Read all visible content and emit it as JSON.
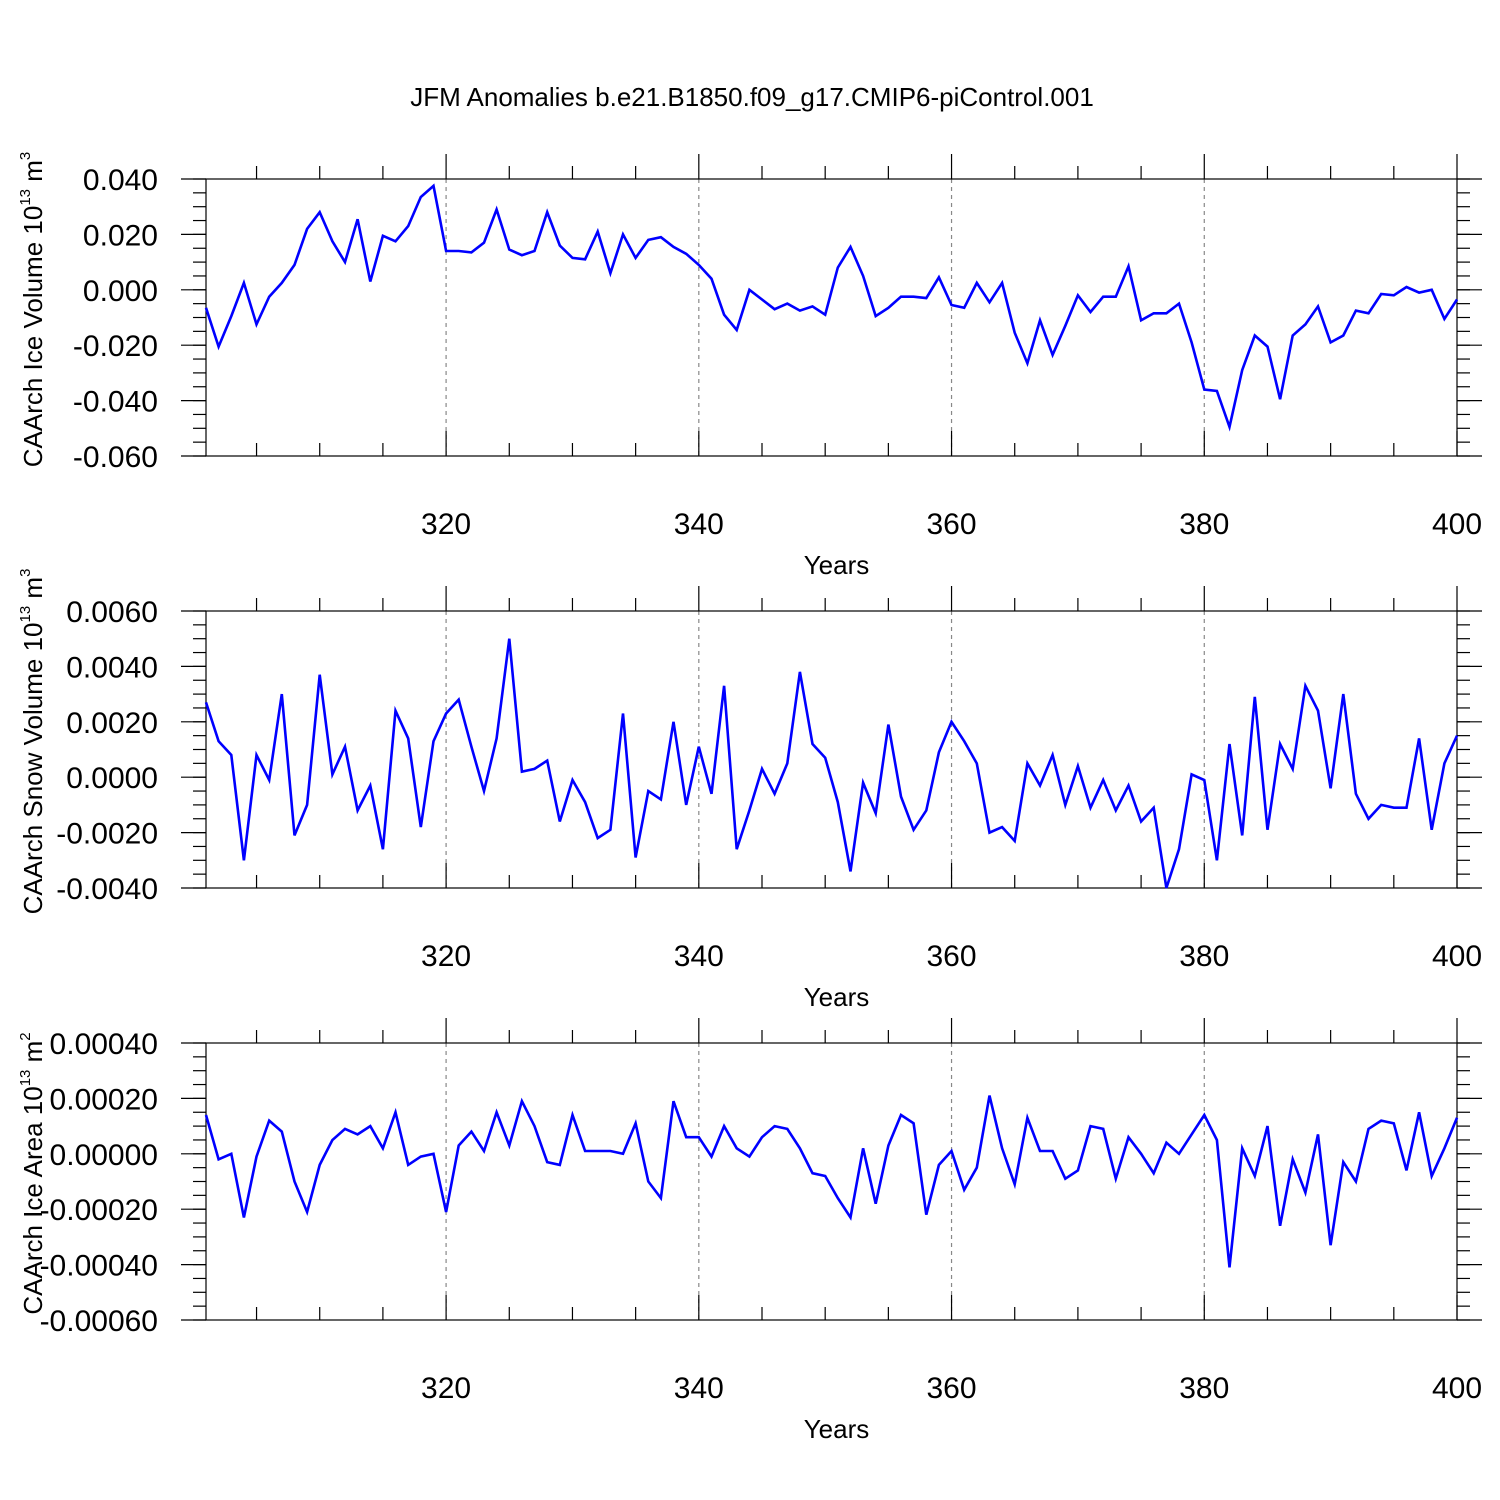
{
  "title": "JFM Anomalies b.e21.B1850.f09_g17.CMIP6-piControl.001",
  "chart_data": [
    {
      "type": "line",
      "name": "ice-volume",
      "ylabel_main": "CAArch Ice Volume 10",
      "ylabel_exp": "13",
      "ylabel_unit": " m",
      "ylabel_unit_exp": "3",
      "xlabel": "Years",
      "xlim": [
        301,
        400
      ],
      "ylim": [
        -0.06,
        0.04
      ],
      "x_ticks": [
        320,
        340,
        360,
        380,
        400
      ],
      "x_tick_labels": [
        "320",
        "340",
        "360",
        "380",
        "400"
      ],
      "y_ticks": [
        -0.06,
        -0.04,
        -0.02,
        0.0,
        0.02,
        0.04
      ],
      "y_tick_labels": [
        "-0.060",
        "-0.040",
        "-0.020",
        "0.000",
        "0.020",
        "0.040"
      ],
      "y_minor_step": 0.005,
      "line_color": "#0000ff",
      "x_start": 301,
      "values": [
        -0.0065,
        -0.0205,
        -0.0095,
        0.0025,
        -0.0125,
        -0.0025,
        0.0025,
        0.009,
        0.022,
        0.028,
        0.0175,
        0.01,
        0.0255,
        0.003,
        0.0195,
        0.0175,
        0.023,
        0.0335,
        0.0375,
        0.014,
        0.014,
        0.0135,
        0.017,
        0.029,
        0.0145,
        0.0125,
        0.014,
        0.028,
        0.016,
        0.0115,
        0.011,
        0.021,
        0.006,
        0.02,
        0.0115,
        0.018,
        0.019,
        0.0155,
        0.013,
        0.009,
        0.004,
        -0.009,
        -0.0145,
        0.0,
        -0.0035,
        -0.007,
        -0.005,
        -0.0075,
        -0.006,
        -0.009,
        0.008,
        0.0155,
        0.005,
        -0.0095,
        -0.0065,
        -0.0025,
        -0.0025,
        -0.003,
        0.0045,
        -0.0055,
        -0.0065,
        0.0025,
        -0.0045,
        0.0025,
        -0.0155,
        -0.0265,
        -0.011,
        -0.0235,
        -0.013,
        -0.002,
        -0.008,
        -0.0025,
        -0.0025,
        0.0085,
        -0.011,
        -0.0085,
        -0.0085,
        -0.005,
        -0.019,
        -0.036,
        -0.0365,
        -0.0495,
        -0.029,
        -0.0165,
        -0.0205,
        -0.0395,
        -0.0165,
        -0.0125,
        -0.006,
        -0.019,
        -0.0165,
        -0.0075,
        -0.0085,
        -0.0015,
        -0.002,
        0.001,
        -0.001,
        0.0,
        -0.0105,
        -0.0035
      ]
    },
    {
      "type": "line",
      "name": "snow-volume",
      "ylabel_main": "CAArch Snow Volume 10",
      "ylabel_exp": "13",
      "ylabel_unit": " m",
      "ylabel_unit_exp": "3",
      "xlabel": "Years",
      "xlim": [
        301,
        400
      ],
      "ylim": [
        -0.004,
        0.006
      ],
      "x_ticks": [
        320,
        340,
        360,
        380,
        400
      ],
      "x_tick_labels": [
        "320",
        "340",
        "360",
        "380",
        "400"
      ],
      "y_ticks": [
        -0.004,
        -0.002,
        0.0,
        0.002,
        0.004,
        0.006
      ],
      "y_tick_labels": [
        "-0.0040",
        "-0.0020",
        "0.0000",
        "0.0020",
        "0.0040",
        "0.0060"
      ],
      "y_minor_step": 0.0005,
      "line_color": "#0000ff",
      "x_start": 301,
      "values": [
        0.0027,
        0.0013,
        0.0008,
        -0.003,
        0.0008,
        -0.0001,
        0.003,
        -0.0021,
        -0.001,
        0.0037,
        0.0001,
        0.0011,
        -0.0012,
        -0.0003,
        -0.0026,
        0.0024,
        0.0014,
        -0.0018,
        0.0013,
        0.0023,
        0.0028,
        0.0011,
        -0.0005,
        0.0014,
        0.005,
        0.0002,
        0.0003,
        0.0006,
        -0.0016,
        -0.0001,
        -0.0009,
        -0.0022,
        -0.0019,
        0.0023,
        -0.0029,
        -0.0005,
        -0.0008,
        0.002,
        -0.001,
        0.0011,
        -0.0006,
        0.0033,
        -0.0026,
        -0.0012,
        0.0003,
        -0.0006,
        0.0005,
        0.0038,
        0.0012,
        0.0007,
        -0.0009,
        -0.0034,
        -0.0002,
        -0.0013,
        0.0019,
        -0.0007,
        -0.0019,
        -0.0012,
        0.0009,
        0.002,
        0.0013,
        0.0005,
        -0.002,
        -0.0018,
        -0.0023,
        0.0005,
        -0.0003,
        0.0008,
        -0.001,
        0.0004,
        -0.0011,
        -0.0001,
        -0.0012,
        -0.0003,
        -0.0016,
        -0.0011,
        -0.004,
        -0.0026,
        0.0001,
        -0.0001,
        -0.003,
        0.0012,
        -0.0021,
        0.0029,
        -0.0019,
        0.0012,
        0.0003,
        0.0033,
        0.0024,
        -0.0004,
        0.003,
        -0.0006,
        -0.0015,
        -0.001,
        -0.0011,
        -0.0011,
        0.0014,
        -0.0019,
        0.0005,
        0.0015
      ]
    },
    {
      "type": "line",
      "name": "ice-area",
      "ylabel_main": "CAArch Ice Area 10",
      "ylabel_exp": "13",
      "ylabel_unit": " m",
      "ylabel_unit_exp": "2",
      "xlabel": "Years",
      "xlim": [
        301,
        400
      ],
      "ylim": [
        -0.0006,
        0.0004
      ],
      "x_ticks": [
        320,
        340,
        360,
        380,
        400
      ],
      "x_tick_labels": [
        "320",
        "340",
        "360",
        "380",
        "400"
      ],
      "y_ticks": [
        -0.0006,
        -0.0004,
        -0.0002,
        0.0,
        0.0002,
        0.0004
      ],
      "y_tick_labels": [
        "-0.00060",
        "-0.00040",
        "-0.00020",
        "0.00000",
        "0.00020",
        "0.00040"
      ],
      "y_minor_step": 5e-05,
      "line_color": "#0000ff",
      "x_start": 301,
      "values": [
        0.00014,
        -2e-05,
        0.0,
        -0.00023,
        -1e-05,
        0.00012,
        8e-05,
        -0.0001,
        -0.00021,
        -4e-05,
        5e-05,
        9e-05,
        7e-05,
        0.0001,
        2e-05,
        0.00015,
        -4e-05,
        -1e-05,
        0.0,
        -0.00021,
        3e-05,
        8e-05,
        1e-05,
        0.00015,
        3e-05,
        0.00019,
        0.0001,
        -3e-05,
        -4e-05,
        0.00014,
        1e-05,
        1e-05,
        1e-05,
        0.0,
        0.00011,
        -0.0001,
        -0.00016,
        0.00019,
        6e-05,
        6e-05,
        -1e-05,
        0.0001,
        2e-05,
        -1e-05,
        6e-05,
        0.0001,
        9e-05,
        2e-05,
        -7e-05,
        -8e-05,
        -0.00016,
        -0.00023,
        2e-05,
        -0.00018,
        3e-05,
        0.00014,
        0.00011,
        -0.00022,
        -4e-05,
        1e-05,
        -0.00013,
        -5e-05,
        0.00021,
        2e-05,
        -0.00011,
        0.00013,
        1e-05,
        1e-05,
        -9e-05,
        -6e-05,
        0.0001,
        9e-05,
        -9e-05,
        6e-05,
        0.0,
        -7e-05,
        4e-05,
        0.0,
        7e-05,
        0.00014,
        5e-05,
        -0.00041,
        2e-05,
        -8e-05,
        0.0001,
        -0.00026,
        -2e-05,
        -0.00014,
        7e-05,
        -0.00033,
        -3e-05,
        -0.0001,
        9e-05,
        0.00012,
        0.00011,
        -6e-05,
        0.00015,
        -8e-05,
        2e-05,
        0.00013
      ]
    }
  ]
}
